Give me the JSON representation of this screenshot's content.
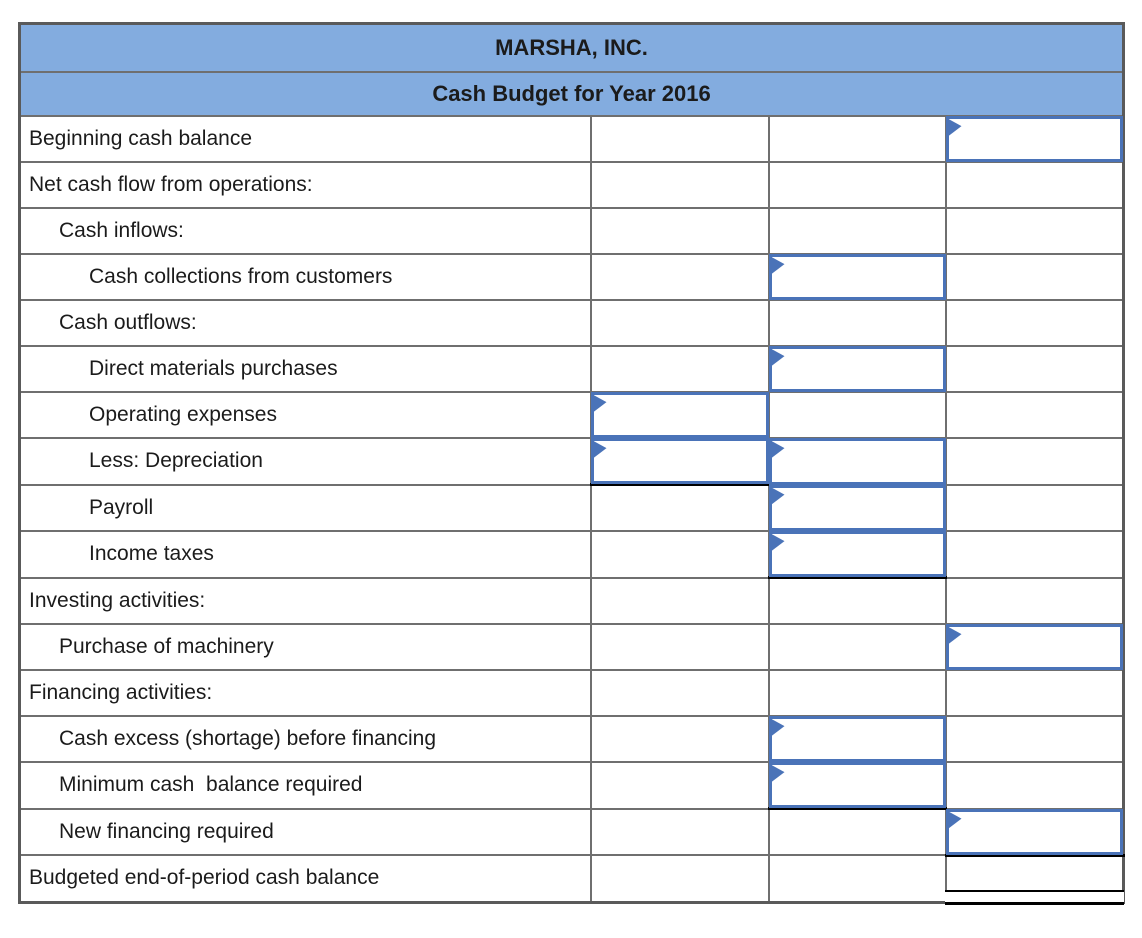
{
  "header": {
    "company": "MARSHA, INC.",
    "subtitle": "Cash Budget for Year 2016"
  },
  "colors": {
    "header_bg": "#83ACDF",
    "grid_line": "#6F6F6F",
    "outer_border": "#5A5A5A",
    "input_border": "#4A73B8",
    "underline": "#000000"
  },
  "rows": [
    {
      "label": "Beginning cash balance",
      "indent": 0,
      "inputs": [
        {
          "col": 3,
          "underline": false
        }
      ]
    },
    {
      "label": "Net cash flow from operations:",
      "indent": 0,
      "inputs": []
    },
    {
      "label": "Cash inflows:",
      "indent": 1,
      "inputs": []
    },
    {
      "label": "Cash collections from customers",
      "indent": 2,
      "inputs": [
        {
          "col": 2,
          "underline": false
        }
      ]
    },
    {
      "label": "Cash outflows:",
      "indent": 1,
      "inputs": []
    },
    {
      "label": "Direct materials purchases",
      "indent": 2,
      "inputs": [
        {
          "col": 2,
          "underline": false
        }
      ]
    },
    {
      "label": "Operating expenses",
      "indent": 2,
      "inputs": [
        {
          "col": 1,
          "underline": false
        }
      ]
    },
    {
      "label": "Less: Depreciation",
      "indent": 2,
      "inputs": [
        {
          "col": 1,
          "underline": true
        },
        {
          "col": 2,
          "underline": false
        }
      ]
    },
    {
      "label": "Payroll",
      "indent": 2,
      "inputs": [
        {
          "col": 2,
          "underline": false
        }
      ]
    },
    {
      "label": "Income taxes",
      "indent": 2,
      "inputs": [
        {
          "col": 2,
          "underline": true
        }
      ]
    },
    {
      "label": "Investing activities:",
      "indent": 0,
      "inputs": []
    },
    {
      "label": "Purchase of machinery",
      "indent": 1,
      "inputs": [
        {
          "col": 3,
          "underline": false
        }
      ]
    },
    {
      "label": "Financing activities:",
      "indent": 0,
      "inputs": []
    },
    {
      "label": "Cash excess (shortage) before financing",
      "indent": 1,
      "inputs": [
        {
          "col": 2,
          "underline": false
        }
      ]
    },
    {
      "label": "Minimum cash  balance required",
      "indent": 1,
      "inputs": [
        {
          "col": 2,
          "underline": true
        }
      ]
    },
    {
      "label": "New financing required",
      "indent": 1,
      "inputs": [
        {
          "col": 3,
          "underline": true
        }
      ]
    },
    {
      "label": "Budgeted end-of-period cash balance",
      "indent": 0,
      "inputs": [],
      "double_underline_col": 3
    }
  ]
}
